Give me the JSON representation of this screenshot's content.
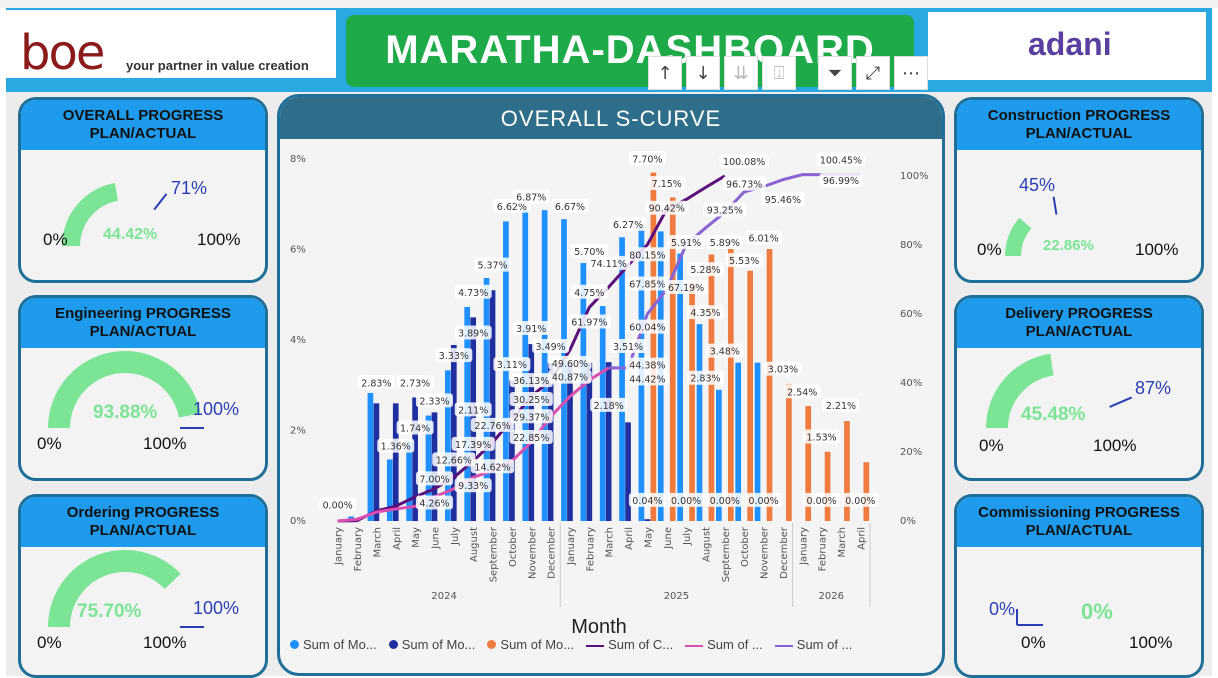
{
  "header": {
    "logo_text": "boe",
    "tagline": "your partner in value creation",
    "title": "MARATHA-DASHBOARD",
    "right_logo": "adani"
  },
  "toolbar": {
    "icons": [
      "arrow-up-icon",
      "arrow-down-icon",
      "double-arrow-down-icon",
      "expand-hierarchy-icon",
      "filter-icon",
      "focus-mode-icon",
      "more-options-icon"
    ],
    "glyphs": [
      "↑",
      "↓",
      "⇊",
      "⍗",
      "⏷",
      "⤢",
      "⋯"
    ]
  },
  "cards": {
    "overall": {
      "title1": "OVERALL PROGRESS",
      "title2": "PLAN/ACTUAL",
      "min": "0%",
      "max": "100%",
      "value": "44.42%",
      "target": "71%",
      "fraction": 0.4442,
      "target_fraction": 0.71
    },
    "engineering": {
      "title1": "Engineering PROGRESS",
      "title2": "PLAN/ACTUAL",
      "min": "0%",
      "max": "100%",
      "value": "93.88%",
      "target": "100%",
      "fraction": 0.9388,
      "target_fraction": 1.0
    },
    "ordering": {
      "title1": "Ordering PROGRESS",
      "title2": "PLAN/ACTUAL",
      "min": "0%",
      "max": "100%",
      "value": "75.70%",
      "target": "100%",
      "fraction": 0.757,
      "target_fraction": 1.0
    },
    "construction": {
      "title1": "Construction PROGRESS",
      "title2": "PLAN/ACTUAL",
      "min": "0%",
      "max": "100%",
      "value": "22.86%",
      "target": "45%",
      "fraction": 0.2286,
      "target_fraction": 0.45
    },
    "delivery": {
      "title1": "Delivery PROGRESS",
      "title2": "PLAN/ACTUAL",
      "min": "0%",
      "max": "100%",
      "value": "45.48%",
      "target": "87%",
      "fraction": 0.4548,
      "target_fraction": 0.87
    },
    "commissioning": {
      "title1": "Commissioning PROGRESS",
      "title2": "PLAN/ACTUAL",
      "min": "0%",
      "max": "100%",
      "value": "0%",
      "target": "0%",
      "fraction": 0.0,
      "target_fraction": 0.0
    }
  },
  "chart": {
    "title": "OVERALL S-CURVE",
    "xlabel": "Month",
    "left_ticks": [
      "0%",
      "2%",
      "4%",
      "6%",
      "8%"
    ],
    "right_ticks": [
      "0%",
      "20%",
      "40%",
      "60%",
      "80%",
      "100%"
    ],
    "years": [
      "2024",
      "2025",
      "2026"
    ],
    "legend": [
      "Sum of Mo...",
      "Sum of Mo...",
      "Sum of Mo...",
      "Sum of C...",
      "Sum of ...",
      "Sum of ..."
    ]
  },
  "chart_data": {
    "type": "bar",
    "categories": [
      "January",
      "February",
      "March",
      "April",
      "May",
      "June",
      "July",
      "August",
      "September",
      "October",
      "November",
      "December",
      "January",
      "February",
      "March",
      "April",
      "May",
      "June",
      "July",
      "August",
      "September",
      "October",
      "November",
      "December",
      "January",
      "February",
      "March",
      "April"
    ],
    "years": [
      2024,
      2024,
      2024,
      2024,
      2024,
      2024,
      2024,
      2024,
      2024,
      2024,
      2024,
      2024,
      2025,
      2025,
      2025,
      2025,
      2025,
      2025,
      2025,
      2025,
      2025,
      2025,
      2025,
      2025,
      2026,
      2026,
      2026,
      2026
    ],
    "ylim": [
      0,
      8
    ],
    "y2lim": [
      0,
      105
    ],
    "colors": {
      "planned": "#1e90ff",
      "actual": "#1f2f9f",
      "forecast": "#f07b3f",
      "cum_planned": "#5b0f7a",
      "cum_actual": "#d94fb0",
      "cum_forecast": "#8a63d2"
    },
    "series": [
      {
        "name": "Sum of Mo...",
        "kind": "bar",
        "color": "#1e90ff",
        "values": [
          0.0,
          0.1,
          2.83,
          1.36,
          1.74,
          2.33,
          3.33,
          4.73,
          5.37,
          6.62,
          6.87,
          6.87,
          6.67,
          5.7,
          4.75,
          6.27,
          6.5,
          6.4,
          5.91,
          4.35,
          2.9,
          3.5,
          3.5,
          null,
          null,
          null,
          null,
          null
        ]
      },
      {
        "name": "Sum of Mo...",
        "kind": "bar",
        "color": "#1f2f9f",
        "values": [
          null,
          null,
          2.6,
          2.6,
          2.73,
          2.4,
          3.89,
          4.5,
          5.1,
          3.11,
          3.91,
          3.49,
          3.49,
          3.5,
          3.51,
          2.18,
          0.04,
          0.0,
          0.0,
          null,
          null,
          null,
          null,
          null,
          null,
          null,
          null,
          null
        ]
      },
      {
        "name": "Sum of Mo...",
        "kind": "bar",
        "color": "#f07b3f",
        "values": [
          null,
          null,
          null,
          null,
          null,
          null,
          null,
          null,
          null,
          null,
          null,
          null,
          null,
          null,
          null,
          null,
          7.7,
          7.15,
          5.28,
          5.89,
          6.01,
          5.53,
          6.01,
          3.03,
          2.54,
          1.53,
          2.21,
          1.3
        ]
      },
      {
        "name": "Sum of C...",
        "kind": "line",
        "axis": "right",
        "color": "#5b0f7a",
        "values": [
          0.0,
          0.1,
          2.93,
          4.29,
          7.0,
          9.33,
          12.66,
          17.39,
          22.76,
          29.37,
          36.13,
          40.87,
          49.6,
          61.97,
          67.85,
          74.11,
          80.15,
          90.42,
          93.25,
          96.73,
          100.08,
          null,
          null,
          null,
          null,
          null,
          null,
          null
        ]
      },
      {
        "name": "Sum of ...",
        "kind": "line",
        "axis": "right",
        "color": "#d94fb0",
        "values": [
          0.0,
          0.5,
          2.6,
          3.5,
          4.26,
          7.0,
          9.33,
          12.66,
          14.62,
          17.39,
          22.85,
          30.25,
          36.13,
          40.87,
          44.42,
          null,
          null,
          null,
          null,
          null,
          null,
          null,
          null,
          null,
          null,
          null,
          null,
          null
        ]
      },
      {
        "name": "Sum of ...",
        "kind": "line",
        "axis": "right",
        "color": "#8a63d2",
        "values": [
          null,
          null,
          null,
          null,
          null,
          null,
          null,
          null,
          null,
          null,
          null,
          null,
          null,
          null,
          44.42,
          44.38,
          60.04,
          67.19,
          80.15,
          85.0,
          89.5,
          95.46,
          96.99,
          99.0,
          100.45,
          100.45,
          100.45,
          100.45
        ]
      }
    ],
    "data_labels": [
      {
        "i": 0,
        "t": "0.00%",
        "y": 0.3
      },
      {
        "i": 2,
        "t": "2.83%",
        "y": 3.0
      },
      {
        "i": 3,
        "t": "1.36%",
        "y": 1.6
      },
      {
        "i": 4,
        "t": "2.73%",
        "y": 3.0
      },
      {
        "i": 4,
        "t": "1.74%",
        "y": 2.0
      },
      {
        "i": 5,
        "t": "2.33%",
        "y": 2.6
      },
      {
        "i": 6,
        "t": "3.33%",
        "y": 3.6
      },
      {
        "i": 7,
        "t": "4.73%",
        "y": 5.0
      },
      {
        "i": 7,
        "t": "3.89%",
        "y": 4.1
      },
      {
        "i": 8,
        "t": "5.37%",
        "y": 5.6
      },
      {
        "i": 9,
        "t": "6.62%",
        "y": 6.9
      },
      {
        "i": 10,
        "t": "6.87%",
        "y": 7.1
      },
      {
        "i": 12,
        "t": "6.67%",
        "y": 6.9
      },
      {
        "i": 13,
        "t": "5.70%",
        "y": 5.9
      },
      {
        "i": 13,
        "t": "4.75%",
        "y": 5.0
      },
      {
        "i": 15,
        "t": "6.27%",
        "y": 6.5
      },
      {
        "i": 16,
        "t": "7.70%",
        "y": 7.95
      },
      {
        "i": 17,
        "t": "7.15%",
        "y": 7.4
      },
      {
        "i": 18,
        "t": "5.91%",
        "y": 6.1
      },
      {
        "i": 19,
        "t": "5.28%",
        "y": 5.5
      },
      {
        "i": 20,
        "t": "5.89%",
        "y": 6.1
      },
      {
        "i": 21,
        "t": "5.53%",
        "y": 5.7
      },
      {
        "i": 22,
        "t": "6.01%",
        "y": 6.2
      },
      {
        "i": 20,
        "t": "3.48%",
        "y": 3.7
      },
      {
        "i": 19,
        "t": "4.35%",
        "y": 4.55
      },
      {
        "i": 23,
        "t": "3.03%",
        "y": 3.3
      },
      {
        "i": 24,
        "t": "2.54%",
        "y": 2.8
      },
      {
        "i": 26,
        "t": "2.21%",
        "y": 2.5
      },
      {
        "i": 25,
        "t": "1.53%",
        "y": 1.8
      },
      {
        "i": 10,
        "t": "3.91%",
        "y": 4.2
      },
      {
        "i": 9,
        "t": "3.11%",
        "y": 3.4
      },
      {
        "i": 11,
        "t": "3.49%",
        "y": 3.8
      },
      {
        "i": 15,
        "t": "3.51%",
        "y": 3.8
      },
      {
        "i": 14,
        "t": "2.18%",
        "y": 2.5
      },
      {
        "i": 19,
        "t": "2.83%",
        "y": 3.1
      },
      {
        "i": 7,
        "t": "2.11%",
        "y": 2.4
      },
      {
        "i": 16,
        "t": "0.04%",
        "y": 0.4
      },
      {
        "i": 18,
        "t": "0.00%",
        "y": 0.4
      },
      {
        "i": 20,
        "t": "0.00%",
        "y": 0.4
      },
      {
        "i": 22,
        "t": "0.00%",
        "y": 0.4
      },
      {
        "i": 25,
        "t": "0.00%",
        "y": 0.4
      },
      {
        "i": 27,
        "t": "0.00%",
        "y": 0.4
      }
    ],
    "line_labels": [
      {
        "i": 5,
        "t": "7.00%",
        "y": 11.5
      },
      {
        "i": 5,
        "t": "4.26%",
        "y": 4.5
      },
      {
        "i": 6,
        "t": "12.66%",
        "y": 17
      },
      {
        "i": 7,
        "t": "17.39%",
        "y": 21.5
      },
      {
        "i": 7,
        "t": "9.33%",
        "y": 9.5
      },
      {
        "i": 8,
        "t": "22.76%",
        "y": 27
      },
      {
        "i": 8,
        "t": "14.62%",
        "y": 15
      },
      {
        "i": 10,
        "t": "36.13%",
        "y": 40
      },
      {
        "i": 10,
        "t": "29.37%",
        "y": 29.5
      },
      {
        "i": 10,
        "t": "30.25%",
        "y": 34.5
      },
      {
        "i": 10,
        "t": "22.85%",
        "y": 23.5
      },
      {
        "i": 12,
        "t": "49.60%",
        "y": 45
      },
      {
        "i": 12,
        "t": "40.87%",
        "y": 41
      },
      {
        "i": 13,
        "t": "61.97%",
        "y": 57
      },
      {
        "i": 16,
        "t": "44.38%",
        "y": 44.5
      },
      {
        "i": 16,
        "t": "44.42%",
        "y": 40.5
      },
      {
        "i": 16,
        "t": "67.85%",
        "y": 68
      },
      {
        "i": 16,
        "t": "60.04%",
        "y": 55.5
      },
      {
        "i": 14,
        "t": "74.11%",
        "y": 74
      },
      {
        "i": 18,
        "t": "67.19%",
        "y": 67
      },
      {
        "i": 16,
        "t": "80.15%",
        "y": 76.5
      },
      {
        "i": 17,
        "t": "90.42%",
        "y": 90
      },
      {
        "i": 20,
        "t": "93.25%",
        "y": 89.5
      },
      {
        "i": 21,
        "t": "96.73%",
        "y": 97
      },
      {
        "i": 21,
        "t": "100.08%",
        "y": 103.5
      },
      {
        "i": 23,
        "t": "95.46%",
        "y": 92.5
      },
      {
        "i": 26,
        "t": "96.99%",
        "y": 98
      },
      {
        "i": 26,
        "t": "100.45%",
        "y": 104
      }
    ]
  }
}
